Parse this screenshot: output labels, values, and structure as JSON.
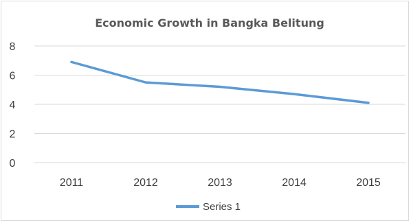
{
  "chart_data": {
    "type": "line",
    "title": "Economic Growth in Bangka Belitung",
    "xlabel": "",
    "ylabel": "",
    "categories": [
      "2011",
      "2012",
      "2013",
      "2014",
      "2015"
    ],
    "series": [
      {
        "name": "Series 1",
        "values": [
          6.9,
          5.5,
          5.2,
          4.7,
          4.1
        ],
        "color": "#5b9bd5"
      }
    ],
    "ylim": [
      0,
      8
    ],
    "yticks": [
      "0",
      "2",
      "4",
      "6",
      "8"
    ],
    "grid": true,
    "legend": "bottom"
  }
}
